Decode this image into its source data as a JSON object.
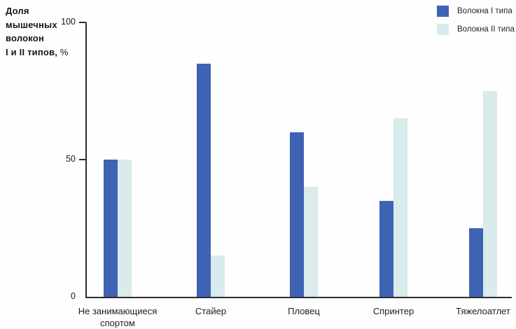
{
  "figure": {
    "ylabel_block": {
      "line1": "Доля",
      "line2": "мышечных",
      "line3": "волокон",
      "line4_bold": "I и II типов,",
      "line4_normal": " %"
    }
  },
  "chart_data": {
    "type": "bar",
    "title": "",
    "ylabel": "Доля мышечных волокон I и II типов, %",
    "xlabel": "",
    "categories": [
      "Не занимающиеся спортом",
      "Стайер",
      "Пловец",
      "Спринтер",
      "Тяжелоатлет"
    ],
    "series": [
      {
        "name": "Волокна I типа",
        "color": "#3e63b4",
        "values": [
          50,
          85,
          60,
          35,
          25
        ]
      },
      {
        "name": "Волокна II типа",
        "color": "#d9ebec",
        "values": [
          50,
          15,
          40,
          65,
          75
        ]
      }
    ],
    "ylim": [
      0,
      100
    ],
    "yticks": [
      0,
      50,
      100
    ],
    "grid": false,
    "legend_position": "top-right",
    "axis_color": "#2d2d2d"
  }
}
